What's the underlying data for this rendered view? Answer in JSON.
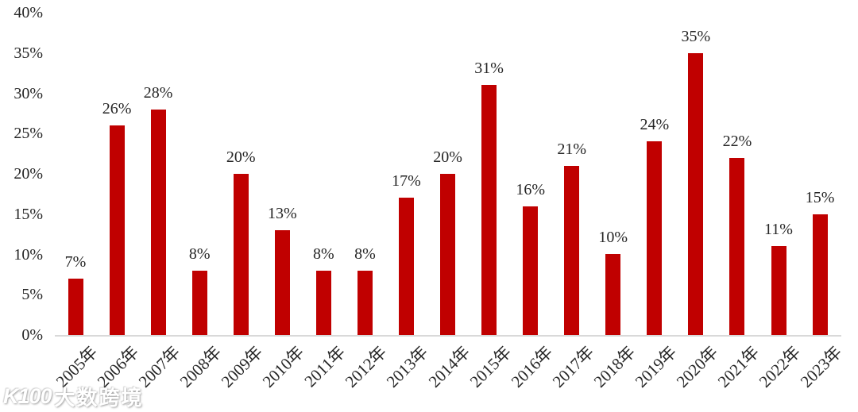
{
  "chart_data": {
    "type": "bar",
    "title": "",
    "xlabel": "",
    "ylabel": "",
    "categories": [
      "2005年",
      "2006年",
      "2007年",
      "2008年",
      "2009年",
      "2010年",
      "2011年",
      "2012年",
      "2013年",
      "2014年",
      "2015年",
      "2016年",
      "2017年",
      "2018年",
      "2019年",
      "2020年",
      "2021年",
      "2022年",
      "2023年"
    ],
    "values": [
      7,
      26,
      28,
      8,
      20,
      13,
      8,
      8,
      17,
      20,
      31,
      16,
      21,
      10,
      24,
      35,
      22,
      11,
      15
    ],
    "data_labels": [
      "7%",
      "26%",
      "28%",
      "8%",
      "20%",
      "13%",
      "8%",
      "8%",
      "17%",
      "20%",
      "31%",
      "16%",
      "21%",
      "10%",
      "24%",
      "35%",
      "22%",
      "11%",
      "15%"
    ],
    "ylim": [
      0,
      40
    ],
    "ytick_values": [
      0,
      5,
      10,
      15,
      20,
      25,
      30,
      35,
      40
    ],
    "ytick_labels": [
      "0%",
      "5%",
      "10%",
      "15%",
      "20%",
      "25%",
      "30%",
      "35%",
      "40%"
    ],
    "grid": false,
    "legend_position": "none",
    "bar_color": "#c00000",
    "axis_line_color": "#d9d9d9",
    "text_color": "#262626"
  },
  "watermark": {
    "logo_text": "K100",
    "brand_text": "大数跨境"
  }
}
